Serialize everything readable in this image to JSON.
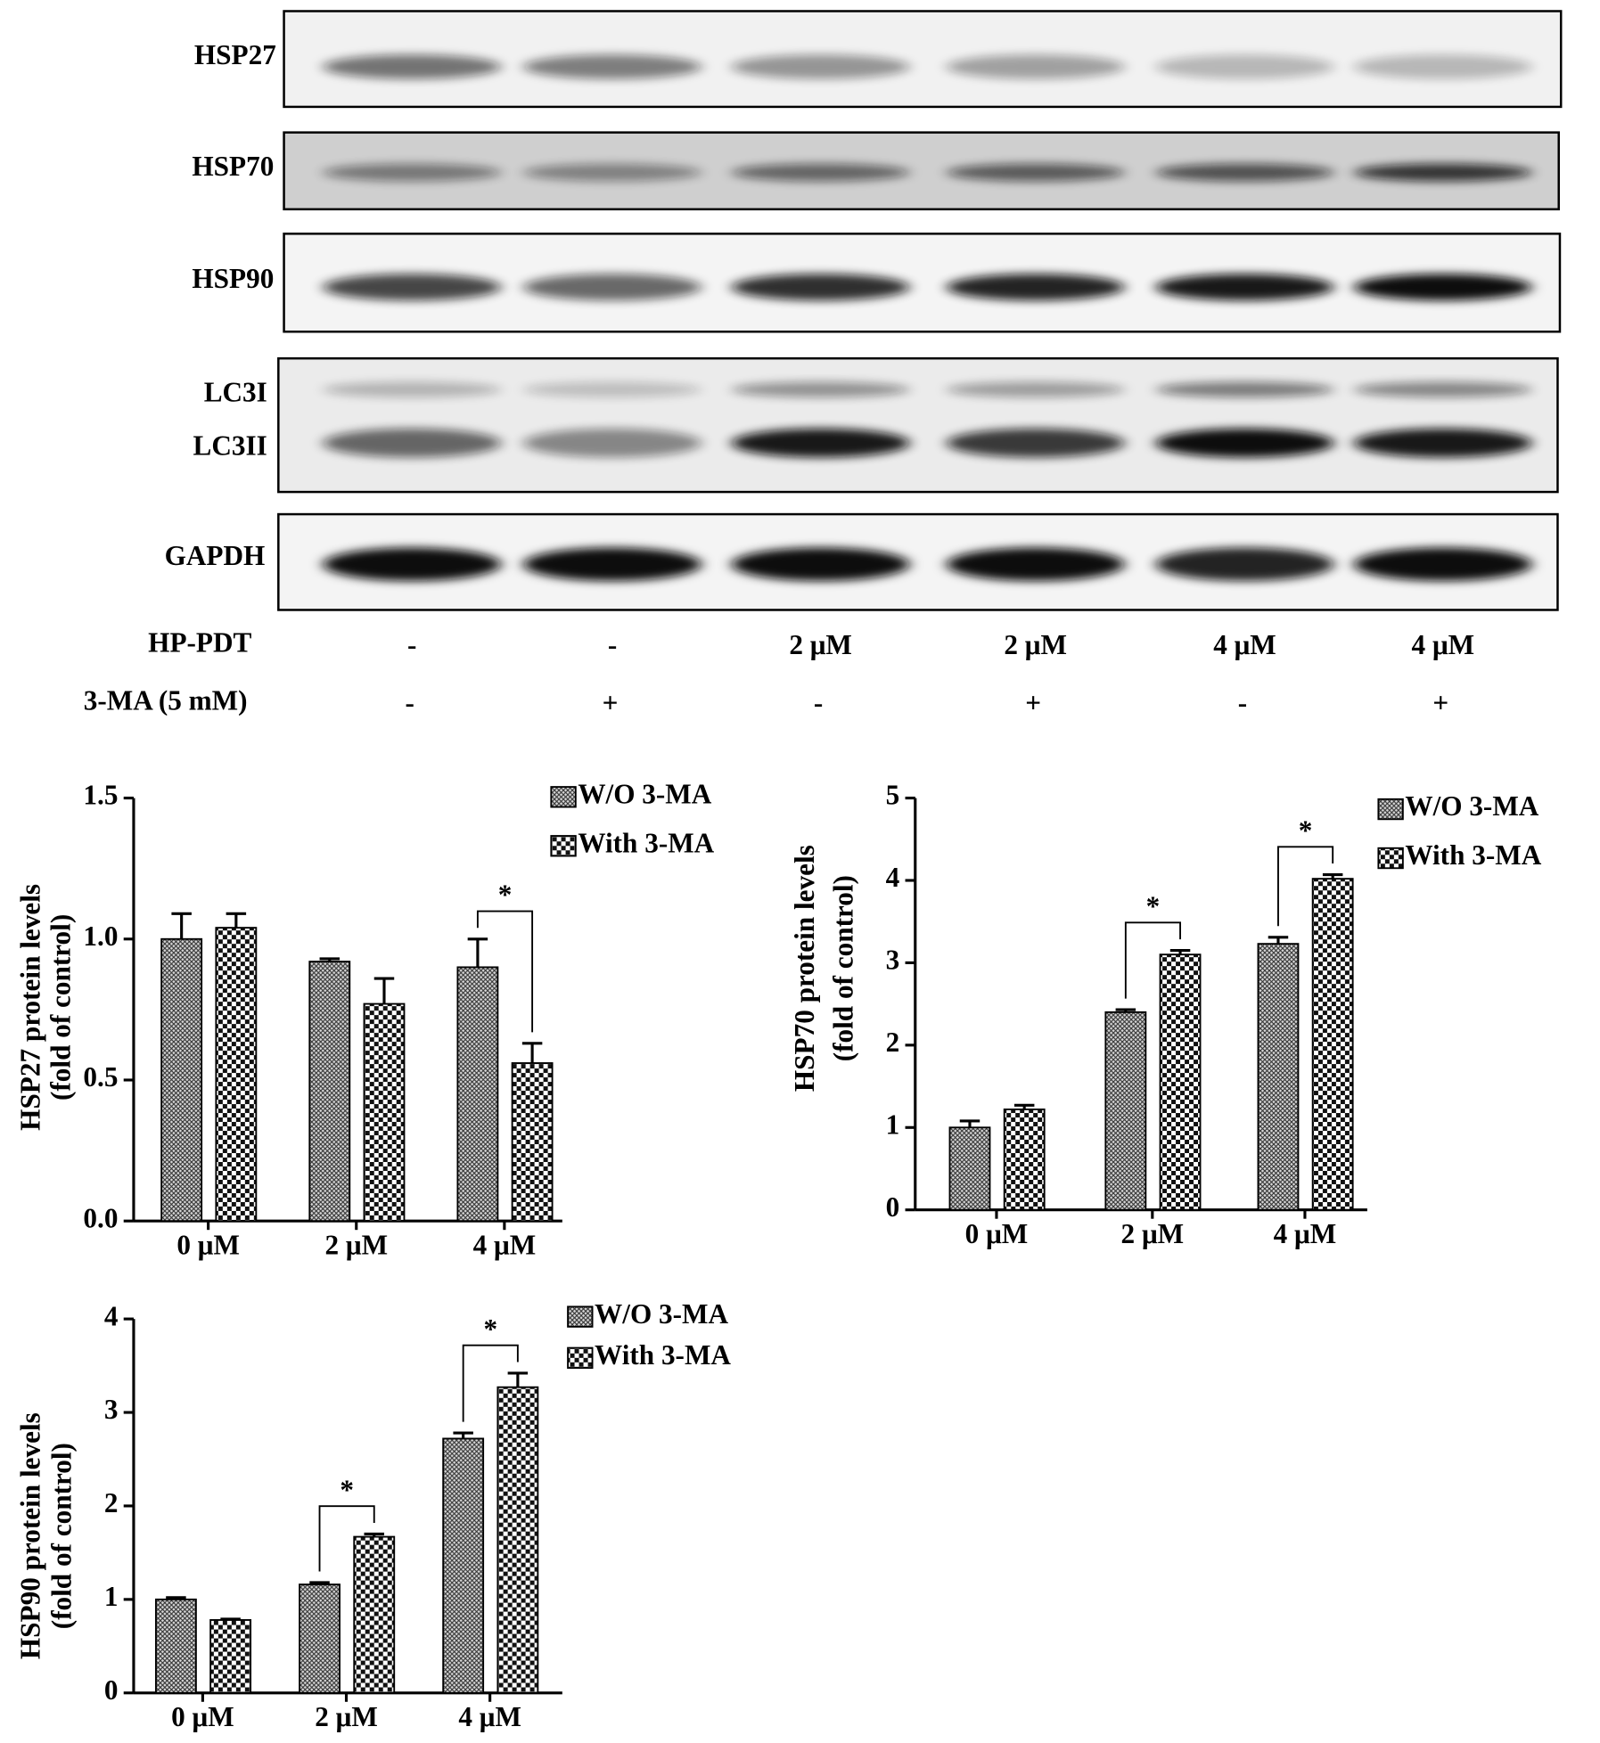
{
  "blot": {
    "bands": [
      "HSP27",
      "HSP70",
      "HSP90",
      "LC3I",
      "LC3II",
      "GAPDH"
    ],
    "conditions": [
      {
        "label": "HP-PDT",
        "values": [
          "-",
          "-",
          "2 μM",
          "2 μM",
          "4 μM",
          "4 μM"
        ]
      },
      {
        "label": "3-MA (5 mM)",
        "values": [
          "-",
          "+",
          "-",
          "+",
          "-",
          "+"
        ]
      }
    ]
  },
  "chart_data": [
    {
      "type": "bar",
      "y_label": [
        "HSP27 protein levels",
        "(fold of control)"
      ],
      "categories": [
        "0 μM",
        "2 μM",
        "4 μM"
      ],
      "series": [
        {
          "name": "W/O 3-MA",
          "pattern": "hatch",
          "color": "#000000",
          "values": [
            1.0,
            0.92,
            0.9
          ],
          "errors": [
            0.09,
            0.01,
            0.1
          ]
        },
        {
          "name": "With 3-MA",
          "pattern": "checker",
          "color": "#000000",
          "values": [
            1.04,
            0.77,
            0.56
          ],
          "errors": [
            0.05,
            0.09,
            0.07
          ]
        }
      ],
      "ylim": [
        0,
        1.5
      ],
      "yticks": [
        {
          "value": 0,
          "label": "0.0"
        },
        0.5,
        {
          "value": 1,
          "label": "1.0"
        },
        1.5
      ],
      "annotations": [
        {
          "category": "4 μM",
          "text": "*"
        }
      ]
    },
    {
      "type": "bar",
      "y_label": [
        "HSP70 protein levels",
        "(fold of control)"
      ],
      "categories": [
        "0 μM",
        "2 μM",
        "4 μM"
      ],
      "series": [
        {
          "name": "W/O 3-MA",
          "pattern": "hatch",
          "color": "#000000",
          "values": [
            1.0,
            2.4,
            3.23
          ],
          "errors": [
            0.08,
            0.03,
            0.08
          ]
        },
        {
          "name": "With 3-MA",
          "pattern": "checker",
          "color": "#000000",
          "values": [
            1.22,
            3.1,
            4.02
          ],
          "errors": [
            0.05,
            0.05,
            0.05
          ]
        }
      ],
      "ylim": [
        0,
        5
      ],
      "yticks": [
        0,
        1,
        2,
        3,
        4,
        5
      ],
      "annotations": [
        {
          "category": "2 μM",
          "text": "*"
        },
        {
          "category": "4 μM",
          "text": "*"
        }
      ]
    },
    {
      "type": "bar",
      "y_label": [
        "HSP90 protein levels",
        "(fold of control)"
      ],
      "categories": [
        "0 μM",
        "2 μM",
        "4 μM"
      ],
      "series": [
        {
          "name": "W/O 3-MA",
          "pattern": "hatch",
          "color": "#000000",
          "values": [
            1.0,
            1.16,
            2.72
          ],
          "errors": [
            0.02,
            0.02,
            0.06
          ]
        },
        {
          "name": "With 3-MA",
          "pattern": "checker",
          "color": "#000000",
          "values": [
            0.78,
            1.67,
            3.27
          ],
          "errors": [
            0.01,
            0.03,
            0.15
          ]
        }
      ],
      "ylim": [
        0,
        4
      ],
      "yticks": [
        0,
        1,
        2,
        3,
        4
      ],
      "annotations": [
        {
          "category": "2 μM",
          "text": "*"
        },
        {
          "category": "4 μM",
          "text": "*"
        }
      ]
    }
  ]
}
